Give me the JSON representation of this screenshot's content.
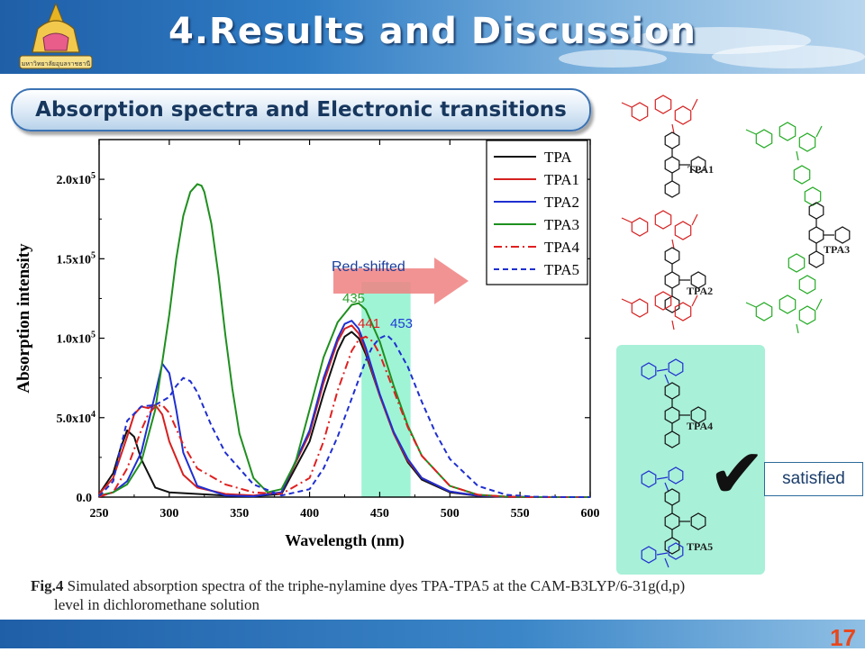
{
  "slide": {
    "title": "4.Results and Discussion",
    "logo_text": "มหาวิทยาลัยอุบลราชธานี",
    "section": "Absorption spectra and Electronic transitions",
    "page_number": "17",
    "colors": {
      "banner": "#2f7cc4",
      "title_text": "#ffffff",
      "page_number": "#e8471c"
    }
  },
  "caption": {
    "label": "Fig.4",
    "line1": " Simulated absorption spectra of the triphe-nylamine dyes TPA-TPA5 at the CAM-B3LYP/6-31g(d,p)",
    "line2": "level in dichloromethane  solution"
  },
  "annotations": {
    "arrow_text": "Red-shifted",
    "peak_labels": [
      {
        "text": "435",
        "color": "#2ca02c"
      },
      {
        "text": "441",
        "color": "#e02020"
      },
      {
        "text": "453",
        "color": "#1f3bd6"
      }
    ],
    "highlight_range": [
      437,
      472
    ],
    "satisfied": "satisfied",
    "checkmark": "✔"
  },
  "structures": [
    {
      "name": "TPA1",
      "color": "#d62020"
    },
    {
      "name": "TPA2",
      "color": "#d62020"
    },
    {
      "name": "TPA3",
      "color": "#22aa22"
    },
    {
      "name": "TPA4",
      "color": "#1f2fd0"
    },
    {
      "name": "TPA5",
      "color": "#1f2fd0"
    }
  ],
  "chart_data": {
    "type": "line",
    "title": "",
    "xlabel": "Wavelength (nm)",
    "ylabel": "Absorption intensity",
    "xlim": [
      250,
      600
    ],
    "ylim": [
      0,
      225000
    ],
    "x_ticks": [
      "250",
      "300",
      "350",
      "400",
      "450",
      "500",
      "550",
      "600"
    ],
    "y_ticks": [
      {
        "value": 0,
        "label": "0.0"
      },
      {
        "value": 50000,
        "label": "5.0x10",
        "exp": "4"
      },
      {
        "value": 100000,
        "label": "1.0x10",
        "exp": "5"
      },
      {
        "value": 150000,
        "label": "1.5x10",
        "exp": "5"
      },
      {
        "value": 200000,
        "label": "2.0x10",
        "exp": "5"
      }
    ],
    "legend_position": "top-right",
    "grid": false,
    "series": [
      {
        "name": "TPA",
        "color": "#111111",
        "dash": "solid",
        "x": [
          250,
          260,
          265,
          270,
          275,
          280,
          290,
          300,
          320,
          340,
          360,
          380,
          400,
          410,
          420,
          425,
          430,
          435,
          440,
          450,
          460,
          470,
          480,
          500,
          520,
          540,
          560,
          600
        ],
        "y": [
          2000,
          15000,
          30000,
          42000,
          38000,
          24000,
          6000,
          3000,
          2000,
          1000,
          500,
          2000,
          35000,
          65000,
          92000,
          101000,
          104000,
          100000,
          90000,
          64000,
          40000,
          22000,
          11000,
          3000,
          800,
          200,
          0,
          0
        ]
      },
      {
        "name": "TPA1",
        "color": "#d62020",
        "dash": "solid",
        "x": [
          250,
          260,
          270,
          275,
          280,
          285,
          290,
          295,
          300,
          310,
          320,
          340,
          360,
          380,
          400,
          410,
          420,
          425,
          430,
          435,
          440,
          450,
          460,
          470,
          480,
          500,
          520,
          540,
          560,
          600
        ],
        "y": [
          2000,
          12000,
          38000,
          52000,
          57000,
          56000,
          58000,
          52000,
          35000,
          14000,
          6000,
          2000,
          1000,
          3000,
          40000,
          72000,
          98000,
          106000,
          108000,
          103000,
          92000,
          64000,
          40000,
          23000,
          12000,
          3500,
          900,
          200,
          0,
          0
        ]
      },
      {
        "name": "TPA2",
        "color": "#1f2fd0",
        "dash": "solid",
        "x": [
          250,
          260,
          270,
          280,
          290,
          295,
          300,
          305,
          310,
          320,
          340,
          360,
          380,
          400,
          410,
          420,
          425,
          430,
          435,
          440,
          450,
          460,
          470,
          480,
          500,
          520,
          540,
          560,
          600
        ],
        "y": [
          500,
          3000,
          10000,
          28000,
          65000,
          84000,
          78000,
          55000,
          28000,
          7000,
          1000,
          500,
          3000,
          42000,
          75000,
          100000,
          109000,
          111000,
          106000,
          94000,
          65000,
          41000,
          24000,
          12000,
          3500,
          900,
          200,
          0,
          0
        ]
      },
      {
        "name": "TPA3",
        "color": "#1f8f1f",
        "dash": "solid",
        "x": [
          250,
          260,
          270,
          280,
          290,
          300,
          305,
          310,
          315,
          320,
          323,
          325,
          330,
          335,
          340,
          345,
          350,
          360,
          370,
          380,
          390,
          400,
          410,
          420,
          430,
          435,
          440,
          450,
          460,
          470,
          480,
          500,
          520,
          540,
          560,
          600
        ],
        "y": [
          1000,
          3000,
          8000,
          22000,
          55000,
          115000,
          150000,
          177000,
          192000,
          197000,
          196000,
          192000,
          172000,
          140000,
          102000,
          68000,
          40000,
          12000,
          3000,
          5000,
          22000,
          55000,
          88000,
          110000,
          121000,
          122000,
          118000,
          98000,
          70000,
          45000,
          26000,
          7000,
          1500,
          300,
          0,
          0
        ]
      },
      {
        "name": "TPA4",
        "color": "#e02020",
        "dash": "dashdot",
        "x": [
          250,
          260,
          270,
          280,
          285,
          290,
          295,
          300,
          310,
          320,
          340,
          360,
          380,
          400,
          410,
          420,
          430,
          435,
          440,
          445,
          450,
          460,
          470,
          480,
          500,
          520,
          540,
          560,
          600
        ],
        "y": [
          300,
          3000,
          18000,
          42000,
          52000,
          57000,
          58000,
          53000,
          33000,
          18000,
          8000,
          3000,
          2000,
          12000,
          35000,
          67000,
          92000,
          99000,
          101000,
          98000,
          90000,
          67000,
          44000,
          26000,
          7000,
          1500,
          300,
          0,
          0
        ]
      },
      {
        "name": "TPA5",
        "color": "#1f2fd0",
        "dash": "dashed",
        "x": [
          250,
          260,
          265,
          270,
          280,
          290,
          300,
          305,
          310,
          315,
          320,
          330,
          340,
          360,
          380,
          400,
          410,
          420,
          430,
          440,
          445,
          450,
          455,
          460,
          470,
          480,
          490,
          500,
          520,
          540,
          560,
          580,
          600
        ],
        "y": [
          500,
          10000,
          30000,
          48000,
          57000,
          58000,
          63000,
          70000,
          75000,
          73000,
          66000,
          45000,
          28000,
          8000,
          1000,
          5000,
          18000,
          38000,
          62000,
          86000,
          95000,
          100000,
          102000,
          98000,
          82000,
          60000,
          40000,
          24000,
          7000,
          1500,
          300,
          0,
          0
        ]
      }
    ]
  }
}
